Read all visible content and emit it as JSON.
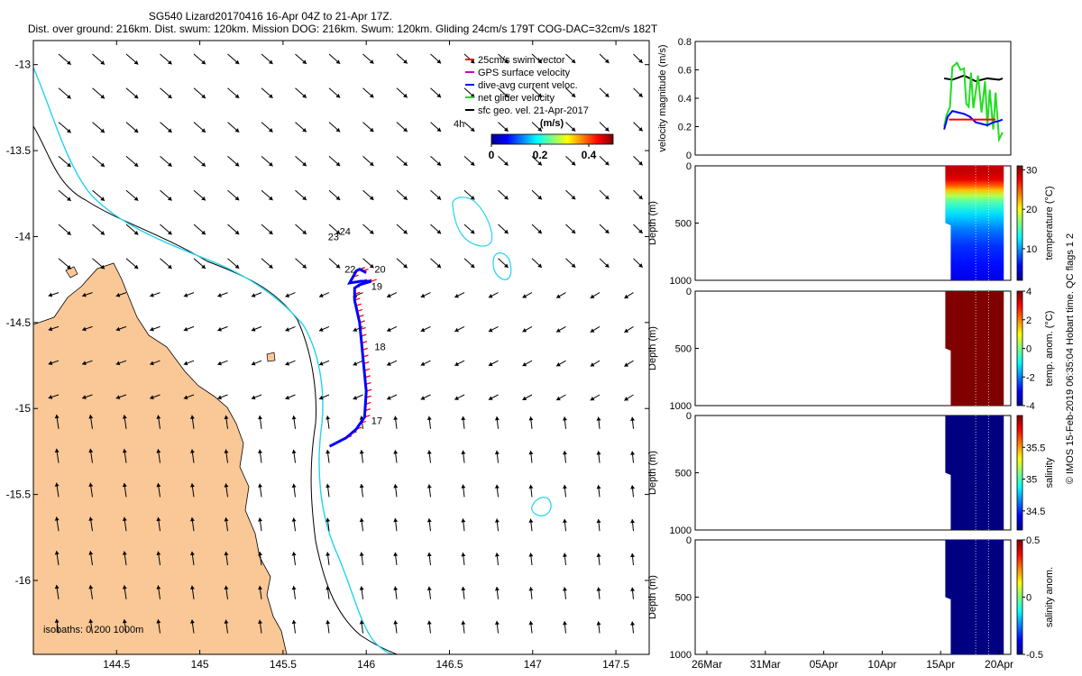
{
  "header": {
    "title": "SG540 Lizard20170416 16-Apr 04Z to 21-Apr 17Z.",
    "subtitle": "Dist. over ground: 216km. Dist. swum: 120km. Mission DOG: 216km. Swum: 120km. Gliding 24cm/s 179T COG-DAC=32cm/s 182T"
  },
  "side_caption": "© IMOS 15-Feb-2019 06:35:04 Hobart time. QC flags 1  2",
  "colors": {
    "land": "#f9c896",
    "isobath_200": "#000000",
    "isobath_1000": "#22d4ee",
    "swim_vector": "#ff0000",
    "gps_velocity": "#cc00cc",
    "dac": "#0000ff",
    "net_velocity": "#22dd22",
    "geo_velocity": "#000000"
  },
  "chart_data": [
    {
      "type": "scatter",
      "id": "map",
      "xlim": [
        144.0,
        147.7
      ],
      "ylim": [
        -16.43,
        -12.86
      ],
      "x_ticks": [
        144.5,
        145,
        145.5,
        146,
        146.5,
        147,
        147.5
      ],
      "x_tick_labels": [
        "144.5",
        "145",
        "145.5",
        "146",
        "146.5",
        "147",
        "147.5"
      ],
      "y_ticks": [
        -13,
        -13.5,
        -14,
        -14.5,
        -15,
        -15.5,
        -16
      ],
      "y_tick_labels": [
        "-13",
        "-13.5",
        "-14",
        "-14.5",
        "-15",
        "-15.5",
        "-16"
      ],
      "legend": [
        {
          "label": "25cm/s swim vector",
          "color": "#ff0000"
        },
        {
          "label": "GPS surface velocity",
          "color": "#cc00cc"
        },
        {
          "label": "dive-avg current veloc.",
          "color": "#0000ff"
        },
        {
          "label": "net glider velocity",
          "color": "#22dd22"
        },
        {
          "label": "sfc geo. vel. 21-Apr-2017",
          "color": "#000000"
        }
      ],
      "legend_position": "top-right",
      "scale_label": "4h",
      "colorbar": {
        "label": "(m/s)",
        "ticks": [
          0,
          0.2,
          0.4
        ],
        "tick_labels": [
          "0",
          "0.2",
          "0.4"
        ],
        "range": [
          0,
          0.5
        ]
      },
      "isobath_label": "isobaths: 0   200  1000m",
      "track": [
        [
          145.78,
          -15.22
        ],
        [
          145.88,
          -15.17
        ],
        [
          145.94,
          -15.12
        ],
        [
          145.99,
          -15.05
        ],
        [
          146.0,
          -14.9
        ],
        [
          145.98,
          -14.7
        ],
        [
          145.96,
          -14.5
        ],
        [
          145.93,
          -14.37
        ],
        [
          145.93,
          -14.3
        ],
        [
          145.96,
          -14.28
        ],
        [
          146.03,
          -14.26
        ],
        [
          145.97,
          -14.26
        ],
        [
          145.9,
          -14.27
        ],
        [
          145.94,
          -14.2
        ],
        [
          145.96,
          -14.19
        ],
        [
          146.0,
          -14.21
        ]
      ],
      "day_labels": [
        {
          "text": "17",
          "x": 146.03,
          "y": -15.09
        },
        {
          "text": "18",
          "x": 146.05,
          "y": -14.66
        },
        {
          "text": "19",
          "x": 146.03,
          "y": -14.31
        },
        {
          "text": "20",
          "x": 146.05,
          "y": -14.21
        },
        {
          "text": "22",
          "x": 145.87,
          "y": -14.21
        },
        {
          "text": "23",
          "x": 145.77,
          "y": -14.02
        },
        {
          "text": "24",
          "x": 145.84,
          "y": -13.99
        }
      ]
    },
    {
      "type": "line",
      "id": "velocity",
      "ylabel": "velocity magnitude (m/s)",
      "xlim": [
        -26,
        1
      ],
      "ylim": [
        0,
        0.8
      ],
      "y_ticks": [
        0,
        0.2,
        0.4,
        0.6,
        0.8
      ],
      "y_tick_labels": [
        "0",
        "0.2",
        "0.4",
        "0.6",
        "0.8"
      ],
      "series": [
        {
          "color": "#000000",
          "x": [
            -4.7,
            -4,
            -3,
            -2,
            -1,
            0,
            0.3
          ],
          "y": [
            0.54,
            0.53,
            0.56,
            0.52,
            0.54,
            0.53,
            0.54
          ]
        },
        {
          "color": "#22dd22",
          "x": [
            -4.7,
            -4.5,
            -4.2,
            -4.0,
            -3.6,
            -3.3,
            -3.0,
            -2.8,
            -2.6,
            -2.4,
            -2.2,
            -1.8,
            -1.5,
            -1.2,
            -1.0,
            -0.8,
            -0.5,
            -0.3,
            0,
            0.3
          ],
          "y": [
            0.2,
            0.28,
            0.34,
            0.62,
            0.65,
            0.6,
            0.61,
            0.36,
            0.34,
            0.58,
            0.33,
            0.56,
            0.3,
            0.52,
            0.2,
            0.46,
            0.18,
            0.44,
            0.11,
            0.16
          ]
        },
        {
          "color": "#0000ff",
          "x": [
            -4.7,
            -4.4,
            -4.0,
            -3.5,
            -3.0,
            -2.5,
            -2.0,
            -1.5,
            -1.0,
            -0.5,
            0,
            0.3
          ],
          "y": [
            0.18,
            0.27,
            0.31,
            0.3,
            0.29,
            0.27,
            0.23,
            0.22,
            0.21,
            0.23,
            0.24,
            0.25
          ]
        },
        {
          "color": "#ff0000",
          "x": [
            -4.3,
            -0.3
          ],
          "y": [
            0.25,
            0.25
          ]
        }
      ]
    },
    {
      "type": "heatmap",
      "id": "temperature",
      "ylabel": "Depth (m)",
      "colorbar_label": "temperature (°C)",
      "ylim": [
        0,
        1000
      ],
      "y_ticks": [
        0,
        500,
        1000
      ],
      "y_tick_labels": [
        "0",
        "500",
        "1000"
      ],
      "clim": [
        2,
        31
      ],
      "cbar_ticks": [
        10,
        20,
        30
      ],
      "cbar_tick_labels": [
        "10",
        "20",
        "30"
      ],
      "colormap": "jet",
      "data_x": [
        -4.6,
        0.4
      ],
      "profile": [
        [
          0,
          29
        ],
        [
          60,
          29
        ],
        [
          120,
          28
        ],
        [
          170,
          25
        ],
        [
          210,
          22
        ],
        [
          260,
          18
        ],
        [
          320,
          15
        ],
        [
          420,
          12
        ],
        [
          560,
          9
        ],
        [
          700,
          7
        ],
        [
          850,
          6
        ],
        [
          1000,
          5
        ]
      ]
    },
    {
      "type": "heatmap",
      "id": "temp-anomaly",
      "ylabel": "Depth (m)",
      "colorbar_label": "temp. anom. (°C)",
      "ylim": [
        0,
        1000
      ],
      "y_ticks": [
        0,
        500,
        1000
      ],
      "y_tick_labels": [
        "0",
        "500",
        "1000"
      ],
      "clim": [
        -4,
        4
      ],
      "cbar_ticks": [
        -4,
        -2,
        0,
        2,
        4
      ],
      "cbar_tick_labels": [
        "-4",
        "-2",
        "0",
        "2",
        "4"
      ],
      "colormap": "jet",
      "data_x": [
        -4.6,
        0.4
      ],
      "profile": [
        [
          0,
          4
        ],
        [
          1000,
          4
        ]
      ]
    },
    {
      "type": "heatmap",
      "id": "salinity",
      "ylabel": "Depth (m)",
      "colorbar_label": "salinity",
      "ylim": [
        0,
        1000
      ],
      "y_ticks": [
        0,
        500,
        1000
      ],
      "y_tick_labels": [
        "0",
        "500",
        "1000"
      ],
      "clim": [
        34.2,
        36.0
      ],
      "cbar_ticks": [
        34.5,
        35,
        35.5
      ],
      "cbar_tick_labels": [
        "34.5",
        "35",
        "35.5"
      ],
      "colormap": "jet",
      "data_x": [
        -4.6,
        0.4
      ],
      "profile": [
        [
          0,
          34.2
        ],
        [
          1000,
          34.2
        ]
      ]
    },
    {
      "type": "heatmap",
      "id": "salinity-anomaly",
      "ylabel": "Depth (m)",
      "colorbar_label": "salinity anom.",
      "ylim": [
        0,
        1000
      ],
      "y_ticks": [
        0,
        500,
        1000
      ],
      "y_tick_labels": [
        "0",
        "500",
        "1000"
      ],
      "clim": [
        -0.5,
        0.5
      ],
      "cbar_ticks": [
        -0.5,
        0,
        0.5
      ],
      "cbar_tick_labels": [
        "-0.5",
        "0",
        "0.5"
      ],
      "colormap": "jet",
      "data_x": [
        -4.6,
        0.4
      ],
      "profile": [
        [
          0,
          -0.5
        ],
        [
          1000,
          -0.5
        ]
      ],
      "x_ticks": [
        -25,
        -20,
        -15,
        -10,
        -5,
        0
      ],
      "x_tick_labels": [
        "26Mar",
        "31Mar",
        "05Apr",
        "10Apr",
        "15Apr",
        "20Apr"
      ]
    }
  ]
}
